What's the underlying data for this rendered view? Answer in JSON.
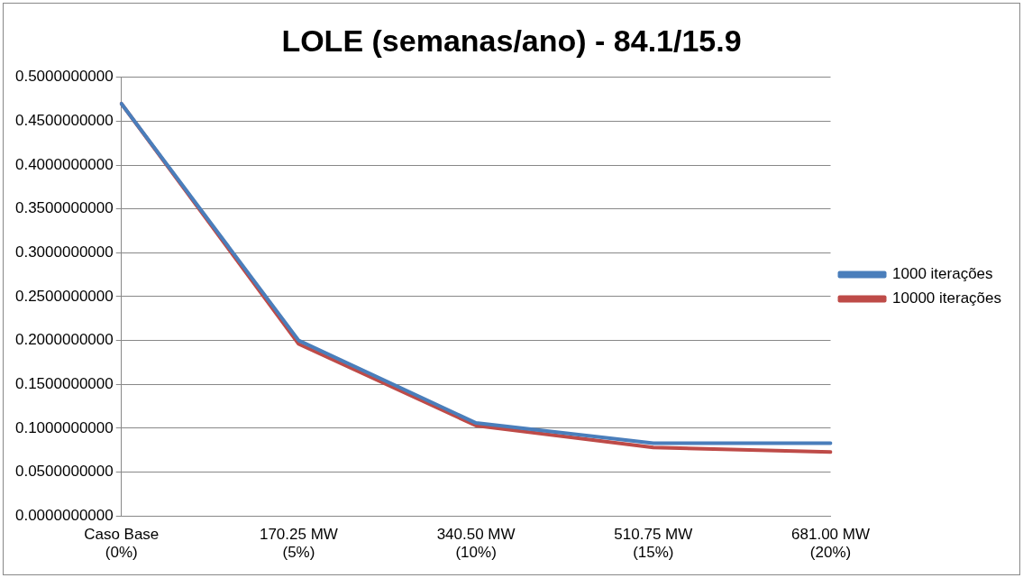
{
  "chart_data": {
    "type": "line",
    "title": "LOLE (semanas/ano) - 84.1/15.9",
    "categories": [
      "Caso Base (0%)",
      "170.25 MW (5%)",
      "340.50 MW (10%)",
      "510.75 MW (15%)",
      "681.00 MW (20%)"
    ],
    "series": [
      {
        "name": "1000 iterações",
        "color": "#4a7ebb",
        "values": [
          0.47,
          0.2,
          0.106,
          0.083,
          0.083
        ]
      },
      {
        "name": "10000 iterações",
        "color": "#be4b48",
        "values": [
          0.47,
          0.196,
          0.103,
          0.078,
          0.073
        ]
      }
    ],
    "ylim": [
      0,
      0.5
    ],
    "yticks": [
      {
        "value": 0,
        "label": "0.0000000000"
      },
      {
        "value": 0.05,
        "label": "0.0500000000"
      },
      {
        "value": 0.1,
        "label": "0.1000000000"
      },
      {
        "value": 0.15,
        "label": "0.1500000000"
      },
      {
        "value": 0.2,
        "label": "0.2000000000"
      },
      {
        "value": 0.25,
        "label": "0.2500000000"
      },
      {
        "value": 0.3,
        "label": "0.3000000000"
      },
      {
        "value": 0.35,
        "label": "0.3500000000"
      },
      {
        "value": 0.4,
        "label": "0.4000000000"
      },
      {
        "value": 0.45,
        "label": "0.4500000000"
      },
      {
        "value": 0.5,
        "label": "0.5000000000"
      }
    ],
    "grid": "y",
    "legend": "right",
    "marker": "none",
    "line_style": "solid"
  }
}
